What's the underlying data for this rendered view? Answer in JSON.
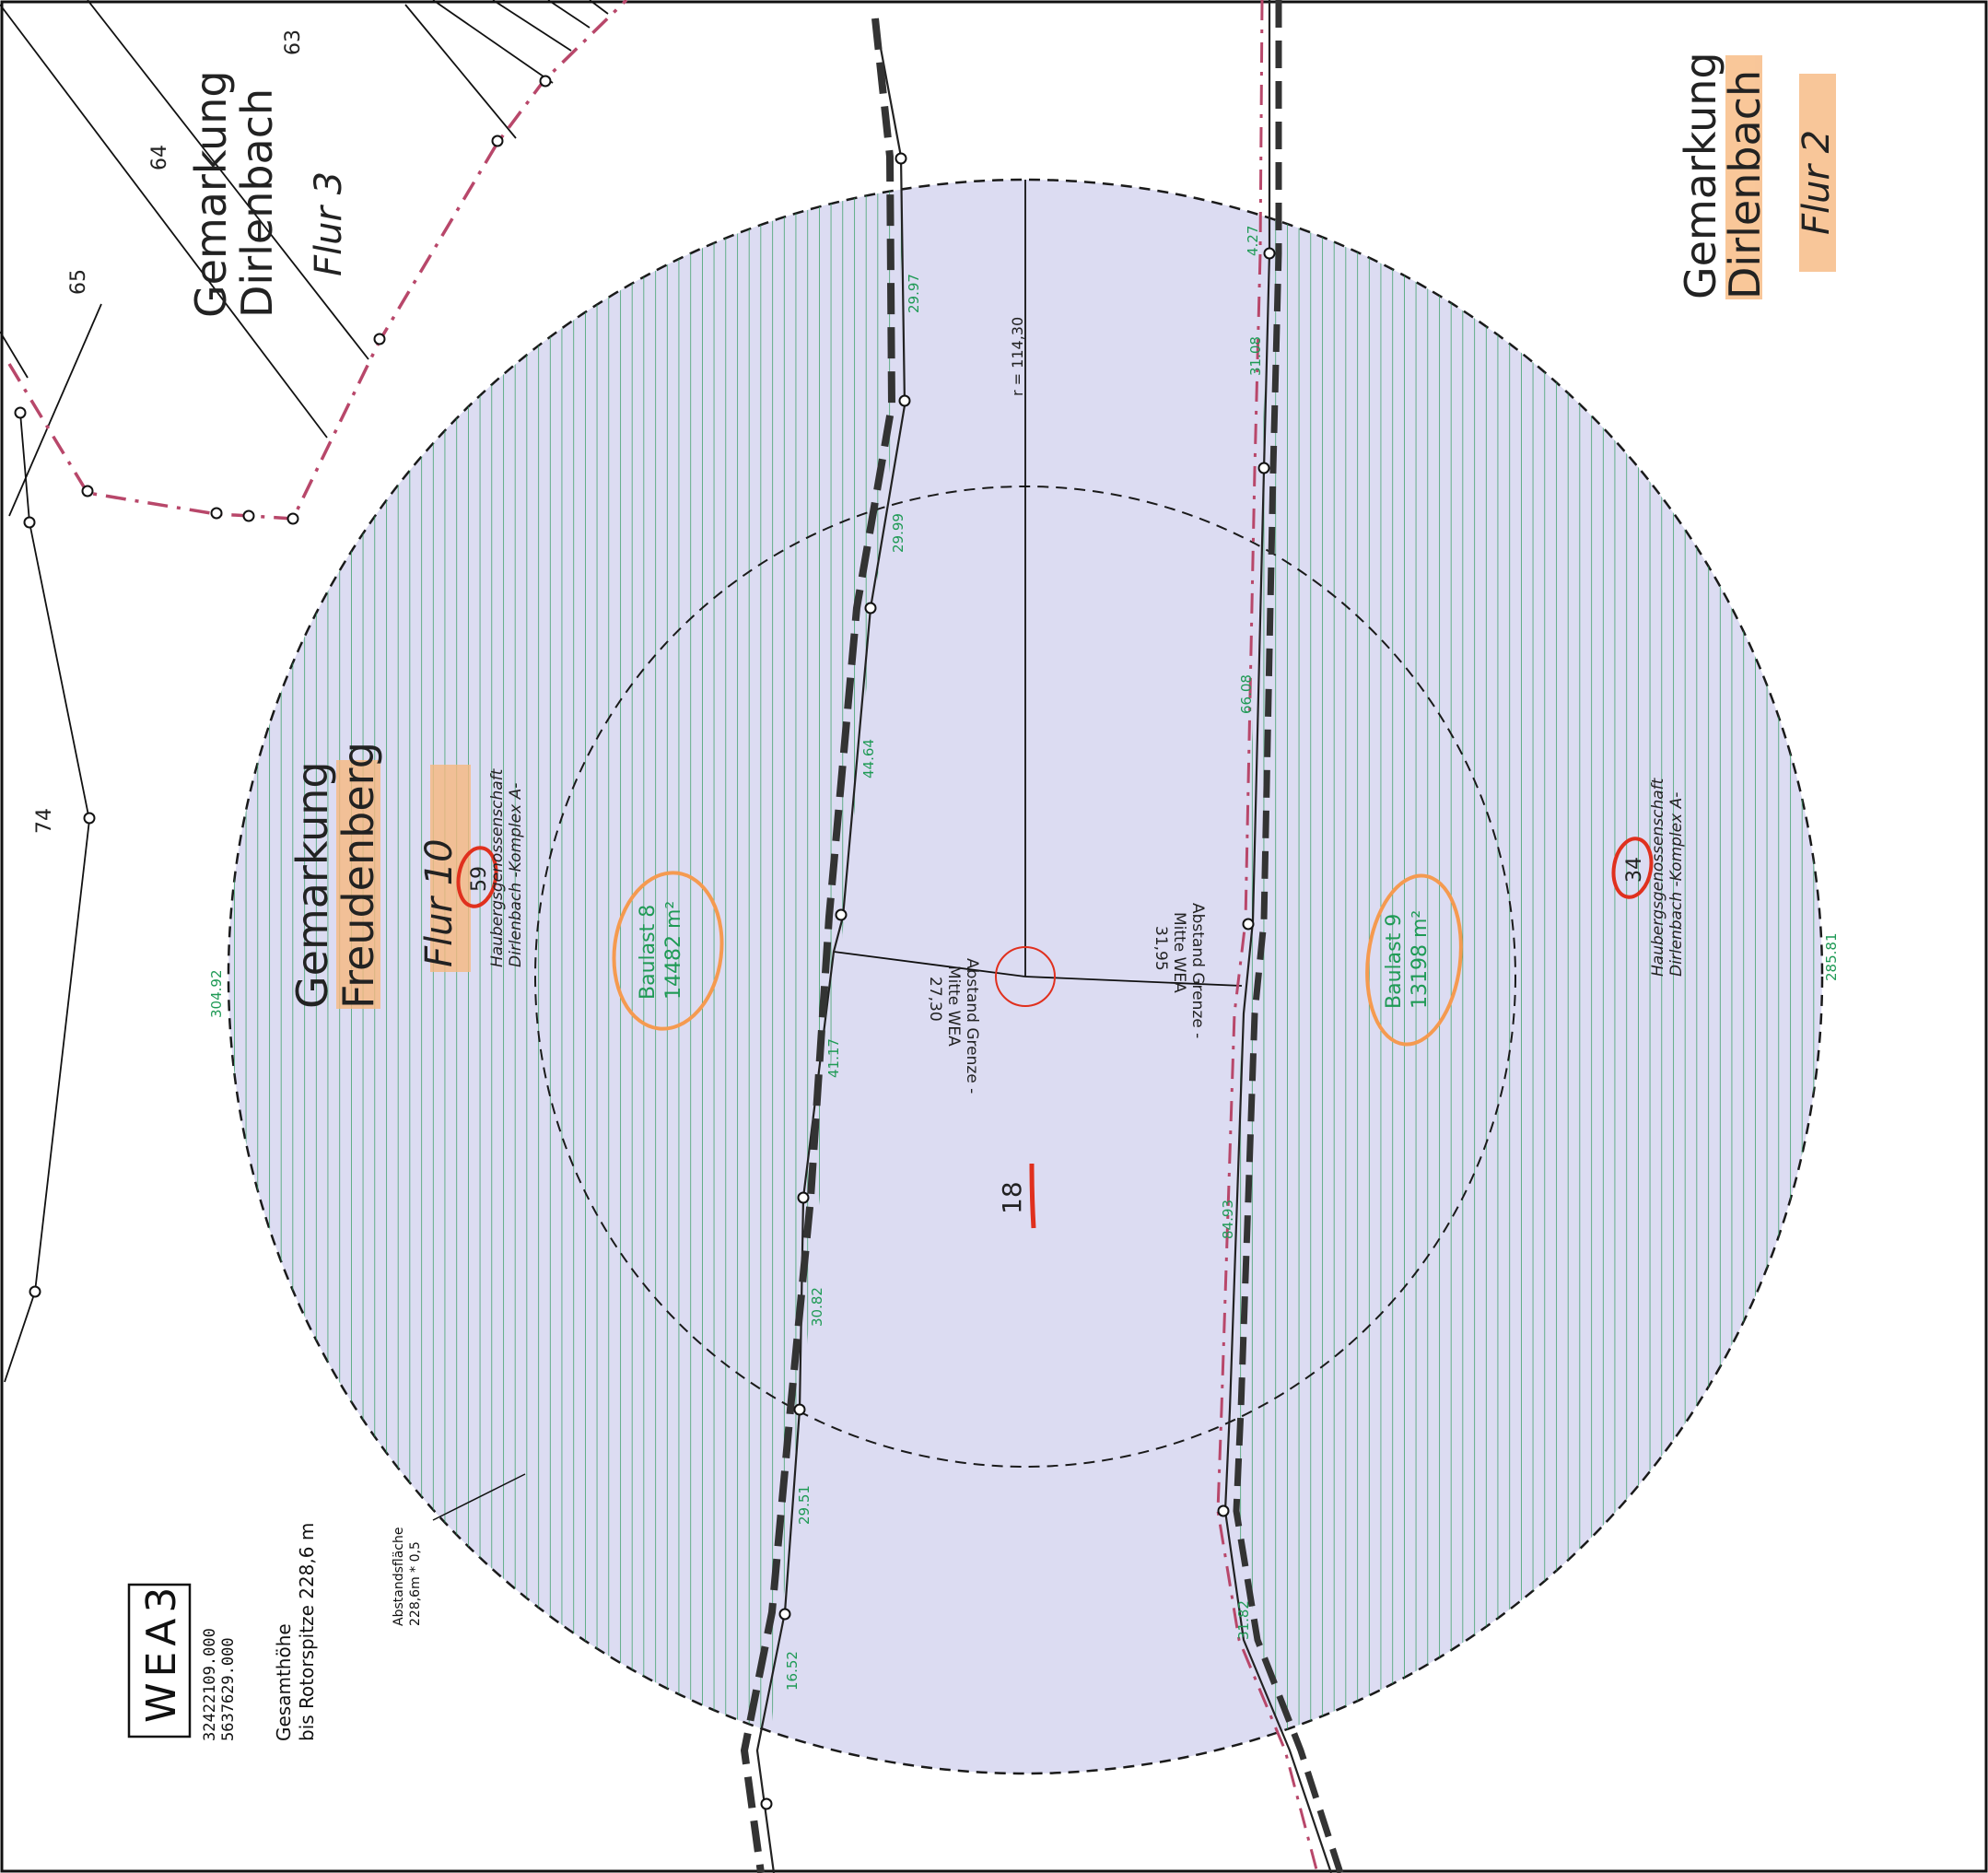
{
  "gemarkung_dirlenbach_flur3": {
    "line1": "Gemarkung",
    "line2": "Dirlenbach",
    "line3": "Flur 3"
  },
  "gemarkung_dirlenbach_flur2": {
    "line1": "Gemarkung",
    "line2": "Dirlenbach",
    "line3": "Flur 2"
  },
  "gemarkung_freudenberg_flur10": {
    "line1": "Gemarkung",
    "line2": "Freudenberg",
    "line3": "Flur 10"
  },
  "parcel_numbers": {
    "p63": "63",
    "p64": "64",
    "p65": "65",
    "p74": "74",
    "p18": "18",
    "p59": "59",
    "p34": "34"
  },
  "owner_left": {
    "line1": "Haubergsgenossenschaft",
    "line2": "Dirlenbach -Komplex A-"
  },
  "owner_right": {
    "line1": "Haubergsgenossenschaft",
    "line2": "Dirlenbach -Komplex A-"
  },
  "baulast_8": {
    "title": "Baulast 8",
    "area": "14482 m²"
  },
  "baulast_9": {
    "title": "Baulast 9",
    "area": "13198 m²"
  },
  "radius_label": "r = 114,30",
  "distance_left": {
    "line1": "Abstand Grenze -",
    "line2": "Mitte WEA",
    "value": "27,30"
  },
  "distance_right": {
    "line1": "Abstand Grenze -",
    "line2": "Mitte WEA",
    "value": "31,95"
  },
  "segment_lengths": {
    "s1": "304.92",
    "s2": "285.81",
    "s3": "29.97",
    "s4": "29.99",
    "s5": "44.64",
    "s6": "41.17",
    "s7": "30.82",
    "s8": "29.51",
    "s9": "16.52",
    "s10": "4.27",
    "s11": "31.08",
    "s12": "66.08",
    "s13": "84.93",
    "s14": "31.82"
  },
  "wea": {
    "name": "WEA3",
    "easting": "32422109.000",
    "northing": "5637629.000",
    "height_line1": "Gesamthöhe",
    "height_line2": "bis Rotorspitze  228,6 m"
  },
  "abstandsflaeche": {
    "line1": "Abstandsfläche",
    "line2": "228,6m * 0,5"
  },
  "colors": {
    "circle_fill": "#dcdcf2",
    "hatch": "#2e9a5c",
    "green_text": "#1f9a55",
    "highlight": "#f7b980",
    "red_mark": "#e0301e",
    "boundary": "#2a2a2a",
    "border_red": "#b8476a"
  }
}
